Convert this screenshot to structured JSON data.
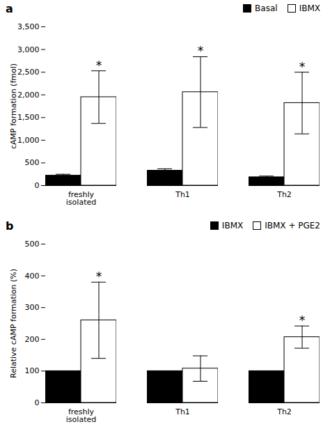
{
  "chart_data": [
    {
      "type": "bar",
      "title": "a",
      "ylabel": "cAMP formation (fmol)",
      "categories": [
        "freshly\nisolated",
        "Th1",
        "Th2"
      ],
      "series": [
        {
          "name": "Basal",
          "color": "#000000",
          "values": [
            220,
            330,
            185
          ],
          "errors": [
            30,
            40,
            25
          ]
        },
        {
          "name": "IBMX",
          "color": "#ffffff",
          "values": [
            1950,
            2060,
            1820
          ],
          "errors": [
            580,
            780,
            680
          ],
          "annotations": [
            "*",
            "*",
            "*"
          ]
        }
      ],
      "ylim": [
        0,
        3500
      ],
      "yticks": [
        0,
        500,
        1000,
        1500,
        2000,
        2500,
        3000,
        3500
      ],
      "legend": "top"
    },
    {
      "type": "bar",
      "title": "b",
      "ylabel": "Relative cAMP formation (%)",
      "categories": [
        "freshly\nisolated",
        "Th1",
        "Th2"
      ],
      "series": [
        {
          "name": "IBMX",
          "color": "#000000",
          "values": [
            100,
            100,
            100
          ]
        },
        {
          "name": "IBMX + PGE2",
          "color": "#ffffff",
          "values": [
            260,
            108,
            207
          ],
          "errors": [
            120,
            40,
            35
          ],
          "annotations": [
            "*",
            null,
            "*"
          ]
        }
      ],
      "ylim": [
        0,
        500
      ],
      "yticks": [
        0,
        100,
        200,
        300,
        400,
        500
      ],
      "legend": "top"
    }
  ]
}
